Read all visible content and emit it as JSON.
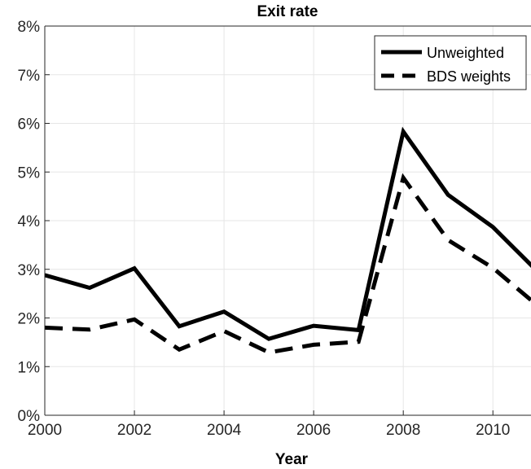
{
  "chart_data": {
    "type": "line",
    "title": "Exit rate",
    "xlabel": "Year",
    "ylabel": "",
    "xlim": [
      2000,
      2010.85
    ],
    "ylim": [
      0,
      8
    ],
    "xticks": [
      2000,
      2002,
      2004,
      2006,
      2008,
      2010
    ],
    "xtick_labels": [
      "2000",
      "2002",
      "2004",
      "2006",
      "2008",
      "2010"
    ],
    "yticks": [
      0,
      1,
      2,
      3,
      4,
      5,
      6,
      7,
      8
    ],
    "ytick_labels": [
      "0%",
      "1%",
      "2%",
      "3%",
      "4%",
      "5%",
      "6%",
      "7%",
      "8%"
    ],
    "grid": true,
    "legend_position": "top-right",
    "x": [
      2000,
      2001,
      2002,
      2003,
      2004,
      2005,
      2006,
      2007,
      2008,
      2009,
      2010,
      2011
    ],
    "series": [
      {
        "name": "Unweighted",
        "style": "solid",
        "color": "#000000",
        "values": [
          2.88,
          2.62,
          3.02,
          1.83,
          2.13,
          1.57,
          1.84,
          1.75,
          5.83,
          4.53,
          3.87,
          2.95
        ]
      },
      {
        "name": "BDS weights",
        "style": "dashed",
        "color": "#000000",
        "values": [
          1.8,
          1.76,
          1.97,
          1.35,
          1.73,
          1.29,
          1.45,
          1.51,
          4.88,
          3.6,
          3.03,
          2.25
        ]
      }
    ]
  }
}
